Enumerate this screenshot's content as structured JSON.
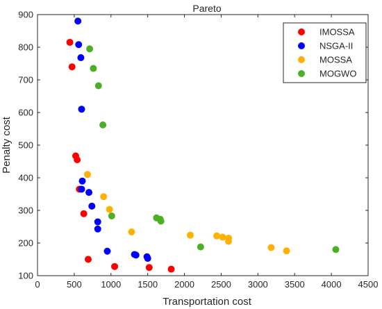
{
  "chart_data": {
    "type": "scatter",
    "title": "Pareto",
    "xlabel": "Transportation cost",
    "ylabel": "Penalty cost",
    "xlim": [
      0,
      4500
    ],
    "ylim": [
      100,
      900
    ],
    "x_ticks": [
      0,
      500,
      1000,
      1500,
      2000,
      2500,
      3000,
      3500,
      4000,
      4500
    ],
    "y_ticks": [
      100,
      200,
      300,
      400,
      500,
      600,
      700,
      800,
      900
    ],
    "grid": false,
    "legend_position": "top-right",
    "series": [
      {
        "name": "IMOSSA",
        "color": "#ff0000",
        "points": [
          [
            440,
            815
          ],
          [
            470,
            740
          ],
          [
            520,
            467
          ],
          [
            540,
            455
          ],
          [
            570,
            365
          ],
          [
            630,
            290
          ],
          [
            690,
            150
          ],
          [
            1050,
            128
          ],
          [
            1520,
            125
          ],
          [
            1820,
            120
          ]
        ]
      },
      {
        "name": "NSGA-II",
        "color": "#0000ff",
        "points": [
          [
            550,
            880
          ],
          [
            560,
            808
          ],
          [
            590,
            768
          ],
          [
            600,
            610
          ],
          [
            610,
            390
          ],
          [
            600,
            365
          ],
          [
            700,
            355
          ],
          [
            740,
            313
          ],
          [
            820,
            265
          ],
          [
            820,
            243
          ],
          [
            950,
            175
          ],
          [
            1320,
            165
          ],
          [
            1340,
            163
          ],
          [
            1490,
            158
          ],
          [
            1500,
            153
          ]
        ]
      },
      {
        "name": "MOSSA",
        "color": "#ffb000",
        "points": [
          [
            680,
            410
          ],
          [
            900,
            342
          ],
          [
            980,
            303
          ],
          [
            1280,
            234
          ],
          [
            2080,
            224
          ],
          [
            2440,
            222
          ],
          [
            2520,
            218
          ],
          [
            2600,
            215
          ],
          [
            2600,
            205
          ],
          [
            3180,
            186
          ],
          [
            3390,
            176
          ]
        ]
      },
      {
        "name": "MOGWO",
        "color": "#4caf26",
        "points": [
          [
            710,
            795
          ],
          [
            760,
            735
          ],
          [
            830,
            682
          ],
          [
            890,
            562
          ],
          [
            1010,
            283
          ],
          [
            1620,
            277
          ],
          [
            1670,
            273
          ],
          [
            1680,
            267
          ],
          [
            2220,
            188
          ],
          [
            4060,
            180
          ]
        ]
      }
    ]
  }
}
